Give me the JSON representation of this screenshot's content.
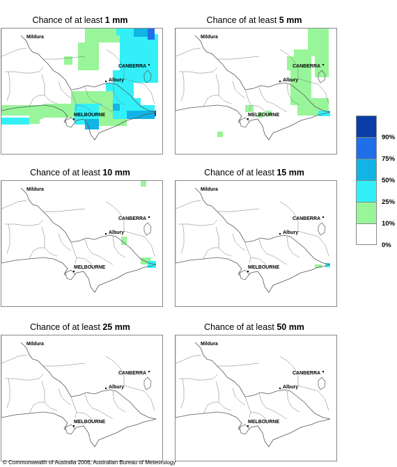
{
  "panels": [
    {
      "title_prefix": "Chance of at least ",
      "amount": "1 mm"
    },
    {
      "title_prefix": "Chance of at least ",
      "amount": "5 mm"
    },
    {
      "title_prefix": "Chance of at least ",
      "amount": "10 mm"
    },
    {
      "title_prefix": "Chance of at least ",
      "amount": "15 mm"
    },
    {
      "title_prefix": "Chance of at least ",
      "amount": "25 mm"
    },
    {
      "title_prefix": "Chance of at least ",
      "amount": "50 mm"
    }
  ],
  "places": {
    "mildura": "Mildura",
    "canberra": "CANBERRA",
    "albury": "Albury",
    "melbourne": "MELBOURNE"
  },
  "legend": {
    "labels": [
      "90%",
      "75%",
      "50%",
      "25%",
      "10%",
      "0%"
    ],
    "colors": [
      "#0a3ea6",
      "#1f6fe8",
      "#12b4e6",
      "#33f0f8",
      "#99f599",
      "#ffffff"
    ]
  },
  "colors": {
    "boundary": "#777777",
    "coast": "#555555",
    "c10": "#99f599",
    "c25": "#33f0f8",
    "c50": "#12b4e6",
    "c75": "#1f6fe8",
    "c90": "#0a3ea6"
  },
  "copyright": "© Commonwealth of Australia 2006, Australian Bureau of Meteorology"
}
